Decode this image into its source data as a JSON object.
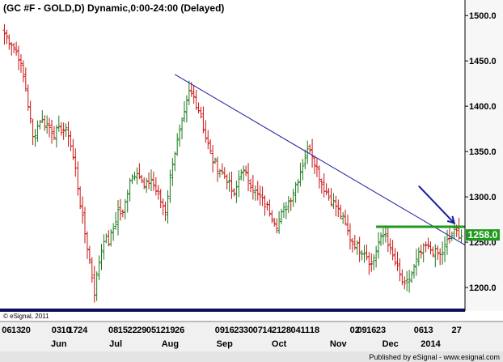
{
  "chart_data": {
    "type": "ohlc",
    "title": "(GC #F - GOLD,D) Dynamic,0:00-24:00 (Delayed)",
    "ylim": [
      1175,
      1510
    ],
    "yticks": [
      1200,
      1250,
      1300,
      1350,
      1400,
      1450,
      1500
    ],
    "ytick_labels": [
      "1200.0",
      "1250.0",
      "1300.0",
      "1350.0",
      "1400.0",
      "1450.0",
      "1500.0"
    ],
    "last_price": 1258.0,
    "last_price_label": "1258.0",
    "up_color": "#1a7a1a",
    "down_color": "#cc1111",
    "day_labels": [
      {
        "bar": 1,
        "text": "06"
      },
      {
        "bar": 5,
        "text": "13"
      },
      {
        "bar": 9,
        "text": "20"
      },
      {
        "bar": 22,
        "text": "03"
      },
      {
        "bar": 26,
        "text": "10"
      },
      {
        "bar": 29,
        "text": "17"
      },
      {
        "bar": 33,
        "text": "24"
      },
      {
        "bar": 46,
        "text": "08"
      },
      {
        "bar": 50,
        "text": "15"
      },
      {
        "bar": 54,
        "text": "22"
      },
      {
        "bar": 58,
        "text": "29"
      },
      {
        "bar": 62,
        "text": "05"
      },
      {
        "bar": 66,
        "text": "12"
      },
      {
        "bar": 70,
        "text": "19"
      },
      {
        "bar": 74,
        "text": "26"
      },
      {
        "bar": 91,
        "text": "09"
      },
      {
        "bar": 95,
        "text": "16"
      },
      {
        "bar": 99,
        "text": "23"
      },
      {
        "bar": 103,
        "text": "30"
      },
      {
        "bar": 107,
        "text": "07"
      },
      {
        "bar": 111,
        "text": "14"
      },
      {
        "bar": 115,
        "text": "21"
      },
      {
        "bar": 119,
        "text": "28"
      },
      {
        "bar": 123,
        "text": "04"
      },
      {
        "bar": 127,
        "text": "11"
      },
      {
        "bar": 131,
        "text": "18"
      },
      {
        "bar": 148,
        "text": "02"
      },
      {
        "bar": 151,
        "text": "09"
      },
      {
        "bar": 155,
        "text": "16"
      },
      {
        "bar": 159,
        "text": "23"
      },
      {
        "bar": 175,
        "text": "06"
      },
      {
        "bar": 179,
        "text": "13"
      },
      {
        "bar": 191,
        "text": "27"
      }
    ],
    "month_labels": [
      {
        "bar": 23,
        "text": "Jun"
      },
      {
        "bar": 47,
        "text": "Jul"
      },
      {
        "bar": 70,
        "text": "Aug"
      },
      {
        "bar": 93,
        "text": "Sep"
      },
      {
        "bar": 116,
        "text": "Oct"
      },
      {
        "bar": 141,
        "text": "Nov"
      },
      {
        "bar": 163,
        "text": "Dec"
      },
      {
        "bar": 180,
        "text": "2014"
      }
    ],
    "anchors": [
      [
        0,
        1480
      ],
      [
        3,
        1470
      ],
      [
        6,
        1455
      ],
      [
        9,
        1420
      ],
      [
        12,
        1365
      ],
      [
        15,
        1385
      ],
      [
        18,
        1380
      ],
      [
        21,
        1370
      ],
      [
        24,
        1375
      ],
      [
        27,
        1370
      ],
      [
        30,
        1330
      ],
      [
        33,
        1275
      ],
      [
        36,
        1230
      ],
      [
        38,
        1195
      ],
      [
        40,
        1230
      ],
      [
        42,
        1255
      ],
      [
        44,
        1250
      ],
      [
        46,
        1265
      ],
      [
        48,
        1285
      ],
      [
        50,
        1280
      ],
      [
        53,
        1320
      ],
      [
        56,
        1330
      ],
      [
        59,
        1310
      ],
      [
        62,
        1320
      ],
      [
        65,
        1300
      ],
      [
        68,
        1285
      ],
      [
        71,
        1340
      ],
      [
        74,
        1370
      ],
      [
        76,
        1390
      ],
      [
        78,
        1415
      ],
      [
        80,
        1410
      ],
      [
        83,
        1390
      ],
      [
        85,
        1365
      ],
      [
        88,
        1340
      ],
      [
        91,
        1330
      ],
      [
        94,
        1320
      ],
      [
        97,
        1300
      ],
      [
        100,
        1330
      ],
      [
        103,
        1320
      ],
      [
        106,
        1305
      ],
      [
        109,
        1295
      ],
      [
        112,
        1285
      ],
      [
        115,
        1270
      ],
      [
        118,
        1285
      ],
      [
        121,
        1300
      ],
      [
        124,
        1320
      ],
      [
        127,
        1345
      ],
      [
        129,
        1355
      ],
      [
        131,
        1340
      ],
      [
        134,
        1315
      ],
      [
        137,
        1300
      ],
      [
        140,
        1290
      ],
      [
        143,
        1275
      ],
      [
        146,
        1255
      ],
      [
        149,
        1245
      ],
      [
        152,
        1240
      ],
      [
        155,
        1225
      ],
      [
        158,
        1250
      ],
      [
        161,
        1260
      ],
      [
        163,
        1240
      ],
      [
        166,
        1220
      ],
      [
        169,
        1200
      ],
      [
        172,
        1215
      ],
      [
        175,
        1235
      ],
      [
        178,
        1245
      ],
      [
        181,
        1240
      ],
      [
        184,
        1235
      ],
      [
        187,
        1250
      ],
      [
        190,
        1262
      ],
      [
        193,
        1258
      ]
    ],
    "resistance_line": {
      "from": [
        72,
        1435
      ],
      "to": [
        199,
        1240
      ]
    },
    "horizontal_line": {
      "from": [
        157,
        1267
      ],
      "to": [
        196,
        1267
      ]
    },
    "arrow": {
      "from": [
        175,
        1312
      ],
      "to": [
        190,
        1271
      ]
    },
    "n_bars": 194
  },
  "footer": {
    "copyright": "© eSignal, 2011",
    "published": "Published by eSignal - www.esignal.com"
  }
}
